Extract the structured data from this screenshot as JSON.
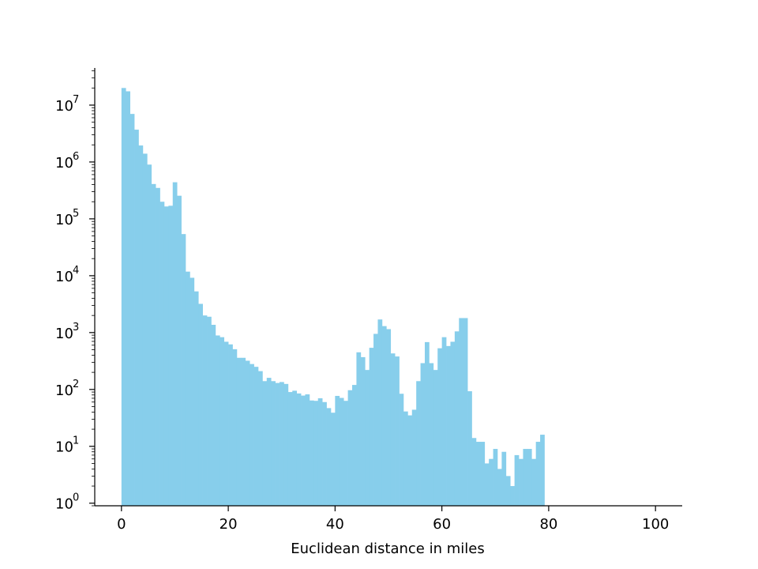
{
  "chart_data": {
    "type": "bar",
    "title": "",
    "xlabel": "Euclidean distance in miles",
    "ylabel": "",
    "xlim": [
      -5,
      105
    ],
    "ylim": [
      0.9,
      45000000
    ],
    "yscale": "log",
    "grid": false,
    "legend": "none",
    "bar_color": "#87ceeb",
    "axis_color": "#000000",
    "bin_start": 0,
    "bin_width": 0.8,
    "x_ticks": [
      {
        "value": 0,
        "label": "0"
      },
      {
        "value": 20,
        "label": "20"
      },
      {
        "value": 40,
        "label": "40"
      },
      {
        "value": 60,
        "label": "60"
      },
      {
        "value": 80,
        "label": "80"
      },
      {
        "value": 100,
        "label": "100"
      }
    ],
    "y_ticks": [
      {
        "value": 1,
        "base": "10",
        "exp": "0"
      },
      {
        "value": 10,
        "base": "10",
        "exp": "1"
      },
      {
        "value": 100,
        "base": "10",
        "exp": "2"
      },
      {
        "value": 1000,
        "base": "10",
        "exp": "3"
      },
      {
        "value": 10000,
        "base": "10",
        "exp": "4"
      },
      {
        "value": 100000,
        "base": "10",
        "exp": "5"
      },
      {
        "value": 1000000,
        "base": "10",
        "exp": "6"
      },
      {
        "value": 10000000,
        "base": "10",
        "exp": "7"
      }
    ],
    "values": [
      20000000,
      17500000,
      7000000,
      3700000,
      1950000,
      1400000,
      900000,
      410000,
      350000,
      200000,
      165000,
      170000,
      440000,
      255000,
      54000,
      11800,
      9200,
      5300,
      3200,
      2000,
      1900,
      1370,
      890,
      830,
      690,
      620,
      510,
      360,
      360,
      320,
      280,
      250,
      210,
      140,
      160,
      140,
      130,
      135,
      125,
      90,
      95,
      85,
      78,
      82,
      64,
      63,
      70,
      60,
      47,
      39,
      77,
      71,
      63,
      97,
      120,
      450,
      370,
      220,
      540,
      950,
      1700,
      1300,
      1150,
      430,
      380,
      84,
      41,
      35,
      44,
      140,
      290,
      680,
      290,
      220,
      530,
      830,
      580,
      690,
      1050,
      1800,
      1800,
      93,
      14,
      12,
      12,
      5,
      6,
      9,
      4,
      8,
      3,
      2,
      7,
      6,
      9,
      9,
      6,
      12,
      16
    ]
  }
}
